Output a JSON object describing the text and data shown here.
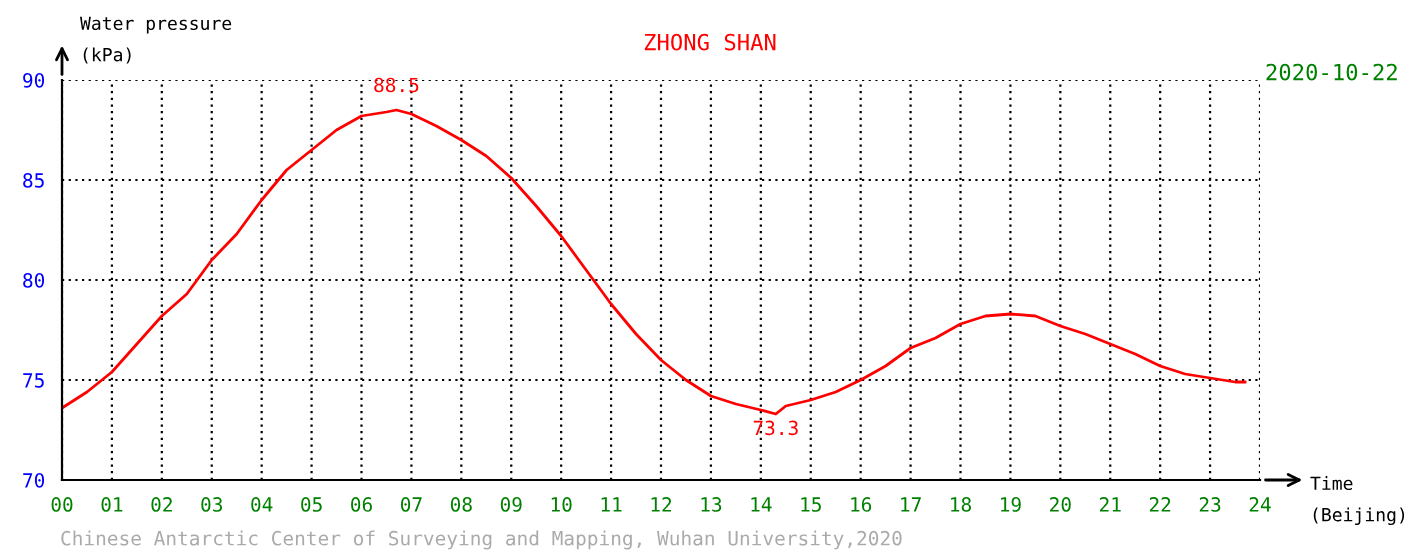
{
  "chart_data": {
    "type": "line",
    "title": "ZHONG SHAN",
    "subtitle": "2020-10-22",
    "ylabel": "Water pressure\n(kPa)",
    "xlabel": "Time\n(Beijing)",
    "x": [
      0,
      0.5,
      1,
      1.5,
      2,
      2.5,
      3,
      3.5,
      4,
      4.5,
      5,
      5.5,
      6,
      6.5,
      6.7,
      7,
      7.5,
      8,
      8.5,
      9,
      9.5,
      10,
      10.5,
      11,
      11.5,
      12,
      12.5,
      13,
      13.5,
      14,
      14.3,
      14.5,
      15,
      15.5,
      16,
      16.5,
      17,
      17.5,
      18,
      18.5,
      19,
      19.5,
      20,
      20.5,
      21,
      21.5,
      22,
      22.5,
      23,
      23.5,
      23.7
    ],
    "series": [
      {
        "color": "#ff0000",
        "values": [
          73.6,
          74.4,
          75.4,
          76.8,
          78.2,
          79.3,
          81.0,
          82.3,
          84.0,
          85.5,
          86.5,
          87.5,
          88.2,
          88.4,
          88.5,
          88.3,
          87.7,
          87.0,
          86.2,
          85.1,
          83.7,
          82.2,
          80.5,
          78.8,
          77.3,
          76.0,
          75.0,
          74.2,
          73.8,
          73.5,
          73.3,
          73.7,
          74.0,
          74.4,
          75.0,
          75.7,
          76.6,
          77.1,
          77.8,
          78.2,
          78.3,
          78.2,
          77.7,
          77.3,
          76.8,
          76.3,
          75.7,
          75.3,
          75.1,
          74.9,
          74.9
        ]
      }
    ],
    "xlim": [
      0,
      24
    ],
    "ylim": [
      70,
      90
    ],
    "xticks": [
      {
        "value": 0,
        "label": "00"
      },
      {
        "value": 1,
        "label": "01"
      },
      {
        "value": 2,
        "label": "02"
      },
      {
        "value": 3,
        "label": "03"
      },
      {
        "value": 4,
        "label": "04"
      },
      {
        "value": 5,
        "label": "05"
      },
      {
        "value": 6,
        "label": "06"
      },
      {
        "value": 7,
        "label": "07"
      },
      {
        "value": 8,
        "label": "08"
      },
      {
        "value": 9,
        "label": "09"
      },
      10,
      11,
      12,
      13,
      14,
      15,
      16,
      17,
      18,
      19,
      20,
      21,
      22,
      23,
      24
    ],
    "yticks": [
      70,
      75,
      80,
      85,
      90
    ],
    "grid": true,
    "line_style": "solid",
    "annotations": [
      {
        "text": "88.5",
        "x": 6.7,
        "y": 88.5
      },
      {
        "text": "73.3",
        "x": 14.3,
        "y": 73.3
      },
      "Chinese Antarctic Center of Surveying and Mapping, Wuhan University,2020"
    ]
  }
}
